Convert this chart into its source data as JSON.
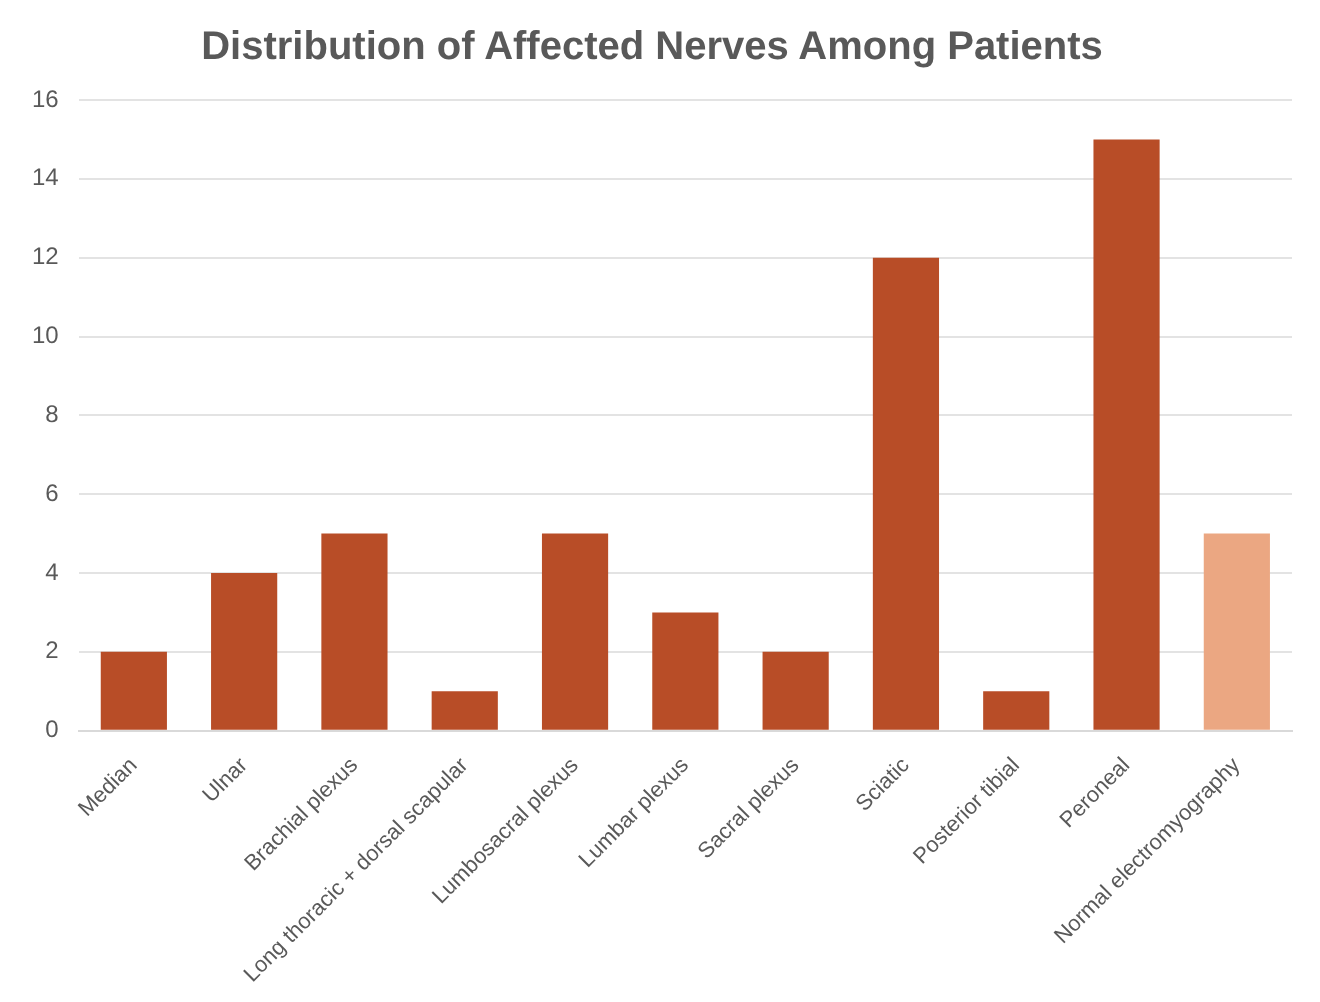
{
  "chart_data": {
    "type": "bar",
    "title": "Distribution of Affected Nerves Among Patients",
    "categories": [
      "Median",
      "Ulnar",
      "Brachial plexus",
      "Long thoracic + dorsal scapular",
      "Lumbosacral plexus",
      "Lumbar plexus",
      "Sacral plexus",
      "Sciatic",
      "Posterior tibial",
      "Peroneal",
      "Normal electromyography"
    ],
    "values": [
      2,
      4,
      5,
      1,
      5,
      3,
      2,
      12,
      1,
      15,
      5
    ],
    "colors": [
      "#b84d27",
      "#b84d27",
      "#b84d27",
      "#b84d27",
      "#b84d27",
      "#b84d27",
      "#b84d27",
      "#b84d27",
      "#b84d27",
      "#b84d27",
      "#eba782"
    ],
    "ylim": [
      0,
      16
    ],
    "yticks": [
      0,
      2,
      4,
      6,
      8,
      10,
      12,
      14,
      16
    ],
    "grid": "y",
    "legend": false
  }
}
